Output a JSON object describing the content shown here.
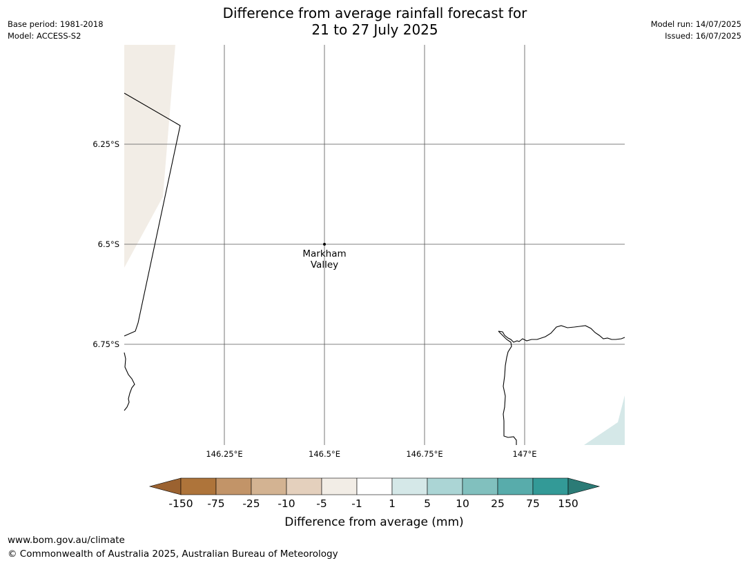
{
  "header": {
    "base_period": "Base period: 1981-2018",
    "model": "Model: ACCESS-S2",
    "model_run": "Model run: 14/07/2025",
    "issued": "Issued: 16/07/2025",
    "title_line1": "Difference from average rainfall forecast for",
    "title_line2": "21 to 27 July 2025"
  },
  "map": {
    "lat_labels": [
      "6.25°S",
      "6.5°S",
      "6.75°S"
    ],
    "lon_labels": [
      "146.25°E",
      "146.5°E",
      "146.75°E",
      "147°E"
    ],
    "place_line1": "Markham",
    "place_line2": "Valley"
  },
  "legend": {
    "title": "Difference from average (mm)",
    "ticks": [
      "-150",
      "-75",
      "-25",
      "-10",
      "-5",
      "-1",
      "1",
      "5",
      "10",
      "25",
      "75",
      "150"
    ],
    "colors": [
      "#9b6230",
      "#ae743a",
      "#c29468",
      "#d3b392",
      "#e4d0bd",
      "#f2ede6",
      "#ffffff",
      "#d5e8e8",
      "#abd5d5",
      "#81c0be",
      "#58acab",
      "#339a97",
      "#2b7b76"
    ]
  },
  "footer": {
    "url": "www.bom.gov.au/climate",
    "copyright": "© Commonwealth of Australia 2025, Australian Bureau of Meteorology"
  }
}
